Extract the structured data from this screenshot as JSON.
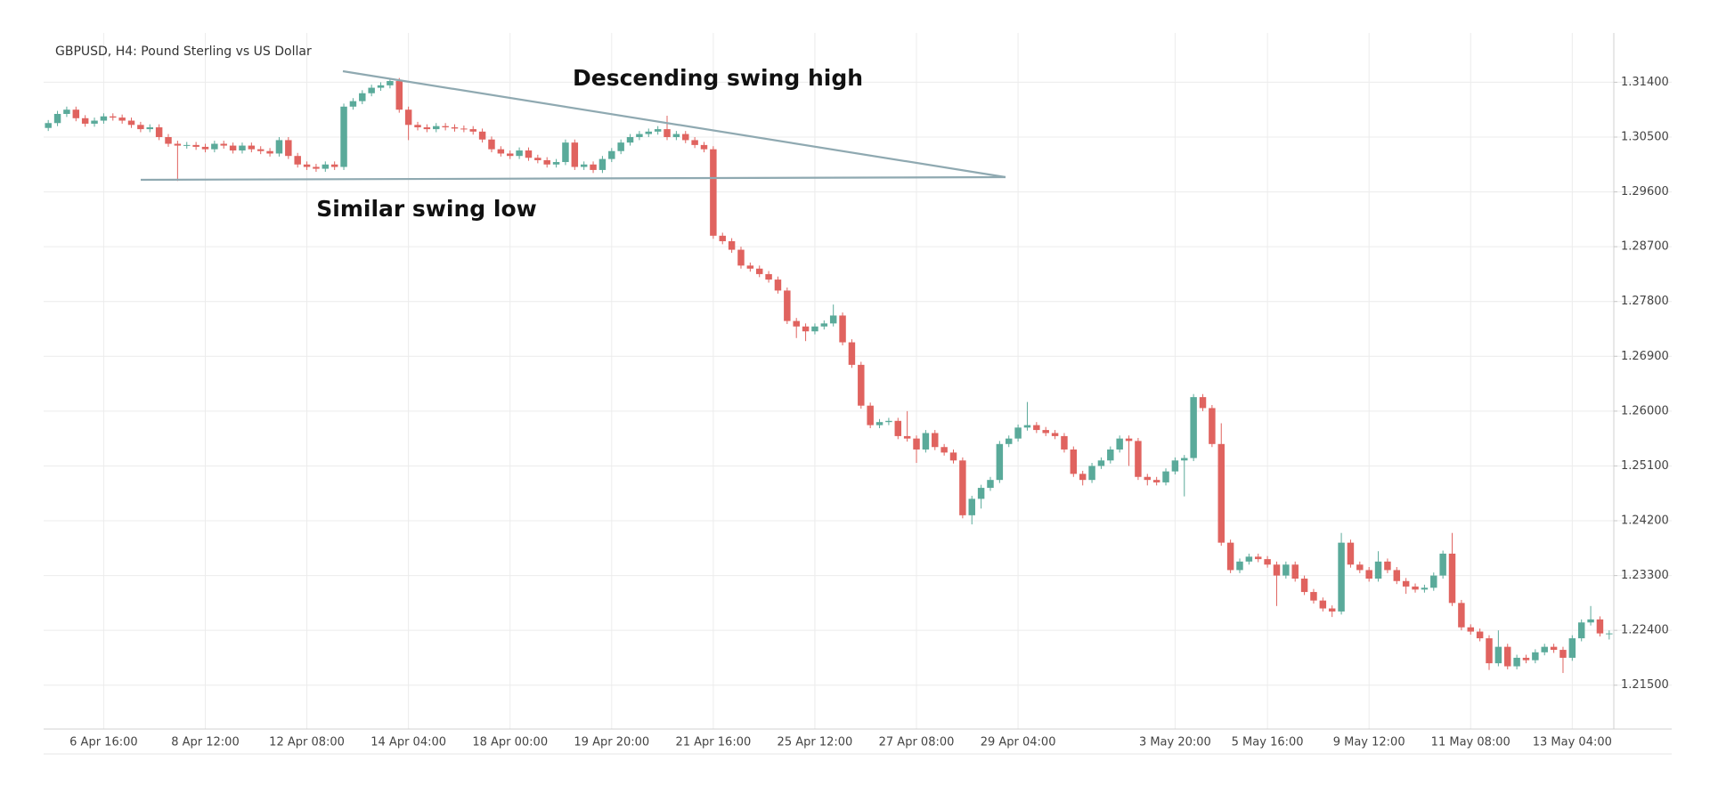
{
  "chart_data": {
    "type": "candlestick",
    "title": "GBPUSD, H4: Pound Sterling vs US Dollar",
    "annotations": [
      "Descending swing high",
      "Similar swing low"
    ],
    "categories": [
      null,
      null,
      null,
      null,
      null,
      null,
      "6 Apr 16:00",
      null,
      null,
      null,
      null,
      null,
      null,
      null,
      null,
      null,
      null,
      "8 Apr 12:00",
      null,
      null,
      null,
      null,
      null,
      null,
      null,
      null,
      null,
      null,
      "12 Apr 08:00",
      null,
      null,
      null,
      null,
      null,
      null,
      null,
      null,
      null,
      null,
      "14 Apr 04:00",
      null,
      null,
      null,
      null,
      null,
      null,
      null,
      null,
      null,
      null,
      "18 Apr 00:00",
      null,
      null,
      null,
      null,
      null,
      null,
      null,
      null,
      null,
      null,
      "19 Apr 20:00",
      null,
      null,
      null,
      null,
      null,
      null,
      null,
      null,
      null,
      null,
      "21 Apr 16:00",
      null,
      null,
      null,
      null,
      null,
      null,
      null,
      null,
      null,
      null,
      "25 Apr 12:00",
      null,
      null,
      null,
      null,
      null,
      null,
      null,
      null,
      null,
      null,
      "27 Apr 08:00",
      null,
      null,
      null,
      null,
      null,
      null,
      null,
      null,
      null,
      null,
      "29 Apr 04:00",
      null,
      null,
      null,
      null,
      null,
      null,
      null,
      null,
      null,
      null,
      null,
      null,
      null,
      null,
      null,
      null,
      "3 May 20:00",
      null,
      null,
      null,
      null,
      null,
      null,
      null,
      null,
      null,
      "5 May 16:00",
      null,
      null,
      null,
      null,
      null,
      null,
      null,
      null,
      null,
      null,
      "9 May 12:00",
      null,
      null,
      null,
      null,
      null,
      null,
      null,
      null,
      null,
      null,
      "11 May 08:00",
      null,
      null,
      null,
      null,
      null,
      null,
      null,
      null,
      null,
      null,
      "13 May 04:00",
      null,
      null,
      null,
      null
    ],
    "open": [
      1.3065,
      1.3073,
      1.3088,
      1.3095,
      1.3081,
      1.3072,
      1.3077,
      1.3084,
      1.3082,
      1.3077,
      1.307,
      1.3063,
      1.3066,
      1.305,
      1.3039,
      1.3036,
      1.3037,
      1.3034,
      1.303,
      1.3039,
      1.3036,
      1.3028,
      1.3036,
      1.303,
      1.3027,
      1.3023,
      1.3045,
      1.3019,
      1.3005,
      1.3001,
      1.2998,
      1.3005,
      1.3001,
      1.31,
      1.3109,
      1.3122,
      1.3131,
      1.3135,
      1.3142,
      1.3095,
      1.307,
      1.3066,
      1.3063,
      1.3068,
      1.3066,
      1.3064,
      1.3063,
      1.3059,
      1.3046,
      1.303,
      1.3023,
      1.3019,
      1.3028,
      1.3016,
      1.3012,
      1.3005,
      1.3009,
      1.3041,
      1.3001,
      1.3005,
      1.2996,
      1.3014,
      1.3027,
      1.3041,
      1.305,
      1.3055,
      1.3059,
      1.3063,
      1.305,
      1.3055,
      1.3045,
      1.3037,
      1.303,
      1.2888,
      1.2879,
      1.2865,
      1.2839,
      1.2834,
      1.2825,
      1.2816,
      1.2798,
      1.2748,
      1.2739,
      1.2731,
      1.2739,
      1.2744,
      1.2757,
      1.2713,
      1.2676,
      1.2609,
      1.2577,
      1.2582,
      1.2584,
      1.2559,
      1.2555,
      1.2537,
      1.2564,
      1.2541,
      1.2532,
      1.2519,
      1.2429,
      1.2456,
      1.2474,
      1.2487,
      1.2546,
      1.2555,
      1.2573,
      1.2577,
      1.2569,
      1.2564,
      1.2559,
      1.2537,
      1.2497,
      1.2487,
      1.251,
      1.2519,
      1.2537,
      1.2555,
      1.2551,
      1.2492,
      1.2487,
      1.2483,
      1.2501,
      1.2519,
      1.2523,
      1.2623,
      1.2605,
      1.2546,
      1.2384,
      1.2339,
      1.2353,
      1.2361,
      1.2357,
      1.2348,
      1.233,
      1.2348,
      1.2325,
      1.2303,
      1.2289,
      1.2276,
      1.2271,
      1.2384,
      1.2348,
      1.2339,
      1.2325,
      1.2353,
      1.2339,
      1.2321,
      1.2312,
      1.2307,
      1.231,
      1.233,
      1.2366,
      1.2285,
      1.2245,
      1.2238,
      1.2227,
      1.2186,
      1.2213,
      1.2181,
      1.2195,
      1.2191,
      1.2204,
      1.2213,
      1.2208,
      1.2195,
      1.2227,
      1.2253,
      1.2258,
      1.2235
    ],
    "high": [
      1.3078,
      1.3093,
      1.31,
      1.31,
      1.3086,
      1.3082,
      1.3089,
      1.3089,
      1.3087,
      1.3082,
      1.3075,
      1.3071,
      1.3071,
      1.3055,
      1.3044,
      1.3042,
      1.3042,
      1.3039,
      1.3044,
      1.3044,
      1.3041,
      1.3041,
      1.3041,
      1.3035,
      1.3032,
      1.305,
      1.305,
      1.3024,
      1.301,
      1.3006,
      1.301,
      1.301,
      1.3105,
      1.3114,
      1.3127,
      1.3136,
      1.314,
      1.3147,
      1.3147,
      1.31,
      1.3075,
      1.3071,
      1.3073,
      1.3073,
      1.3071,
      1.3069,
      1.3068,
      1.3064,
      1.3051,
      1.3035,
      1.3028,
      1.3033,
      1.3033,
      1.3021,
      1.3017,
      1.3014,
      1.3046,
      1.3046,
      1.301,
      1.301,
      1.3019,
      1.3032,
      1.3046,
      1.3055,
      1.306,
      1.3064,
      1.3068,
      1.3085,
      1.306,
      1.306,
      1.305,
      1.3042,
      1.3035,
      1.2893,
      1.2884,
      1.287,
      1.2844,
      1.2839,
      1.283,
      1.2821,
      1.2803,
      1.2753,
      1.2744,
      1.2744,
      1.2749,
      1.2775,
      1.2762,
      1.2718,
      1.2681,
      1.2614,
      1.2587,
      1.2589,
      1.2589,
      1.26,
      1.256,
      1.2569,
      1.2569,
      1.2546,
      1.2537,
      1.2524,
      1.2461,
      1.2479,
      1.2492,
      1.2551,
      1.256,
      1.2578,
      1.2615,
      1.2582,
      1.2574,
      1.2569,
      1.2564,
      1.2542,
      1.2502,
      1.2515,
      1.2524,
      1.2542,
      1.256,
      1.256,
      1.2556,
      1.2497,
      1.2492,
      1.2506,
      1.2524,
      1.2528,
      1.2628,
      1.2628,
      1.261,
      1.258,
      1.2389,
      1.2358,
      1.2366,
      1.2366,
      1.2362,
      1.2353,
      1.2353,
      1.2353,
      1.233,
      1.2308,
      1.2294,
      1.2281,
      1.24,
      1.2389,
      1.2353,
      1.2344,
      1.237,
      1.2358,
      1.2344,
      1.2326,
      1.2317,
      1.2315,
      1.2335,
      1.2371,
      1.24,
      1.229,
      1.225,
      1.2243,
      1.2232,
      1.224,
      1.2218,
      1.22,
      1.22,
      1.2209,
      1.2218,
      1.2218,
      1.2213,
      1.2232,
      1.2258,
      1.228,
      1.2263,
      1.224
    ],
    "low": [
      1.306,
      1.3068,
      1.3083,
      1.3076,
      1.3067,
      1.3067,
      1.3072,
      1.3077,
      1.3072,
      1.3065,
      1.3058,
      1.3058,
      1.3045,
      1.3034,
      1.2978,
      1.3031,
      1.3029,
      1.3025,
      1.3025,
      1.3031,
      1.3023,
      1.3023,
      1.3025,
      1.3022,
      1.3018,
      1.3018,
      1.3014,
      1.3,
      1.2996,
      1.2993,
      1.2993,
      1.2996,
      1.2996,
      1.3095,
      1.3104,
      1.3117,
      1.3126,
      1.313,
      1.309,
      1.3045,
      1.3061,
      1.3058,
      1.3058,
      1.3061,
      1.3059,
      1.3058,
      1.3054,
      1.3041,
      1.3025,
      1.3018,
      1.3014,
      1.3014,
      1.3011,
      1.3007,
      1.3,
      1.3,
      1.3004,
      1.2996,
      1.2996,
      1.2991,
      1.2991,
      1.3009,
      1.3022,
      1.3036,
      1.3045,
      1.305,
      1.3054,
      1.3045,
      1.3045,
      1.304,
      1.3032,
      1.3025,
      1.2883,
      1.2874,
      1.286,
      1.2834,
      1.2829,
      1.282,
      1.2811,
      1.2793,
      1.2743,
      1.272,
      1.2715,
      1.2726,
      1.2734,
      1.2739,
      1.2708,
      1.2671,
      1.2604,
      1.2572,
      1.2572,
      1.2577,
      1.2554,
      1.255,
      1.2515,
      1.2532,
      1.2536,
      1.2527,
      1.2514,
      1.2424,
      1.2414,
      1.244,
      1.2469,
      1.2482,
      1.2541,
      1.255,
      1.2568,
      1.2564,
      1.2559,
      1.2554,
      1.2532,
      1.2492,
      1.2478,
      1.2482,
      1.2505,
      1.2514,
      1.2532,
      1.251,
      1.2487,
      1.2478,
      1.2478,
      1.2478,
      1.2496,
      1.246,
      1.2518,
      1.26,
      1.2541,
      1.2379,
      1.2334,
      1.2334,
      1.2348,
      1.2352,
      1.2343,
      1.228,
      1.2325,
      1.232,
      1.2298,
      1.2284,
      1.2271,
      1.2262,
      1.2266,
      1.2343,
      1.2334,
      1.232,
      1.232,
      1.2334,
      1.2316,
      1.23,
      1.2302,
      1.2302,
      1.2305,
      1.2325,
      1.228,
      1.224,
      1.2233,
      1.2222,
      1.2175,
      1.2181,
      1.2176,
      1.2176,
      1.2186,
      1.2186,
      1.2199,
      1.2203,
      1.217,
      1.219,
      1.2222,
      1.2248,
      1.223,
      1.2225
    ],
    "close": [
      1.3073,
      1.3088,
      1.3095,
      1.3081,
      1.3072,
      1.3077,
      1.3084,
      1.3082,
      1.3077,
      1.307,
      1.3063,
      1.3066,
      1.305,
      1.3039,
      1.3036,
      1.3037,
      1.3034,
      1.303,
      1.3039,
      1.3036,
      1.3028,
      1.3036,
      1.303,
      1.3027,
      1.3023,
      1.3045,
      1.3019,
      1.3005,
      1.3001,
      1.2998,
      1.3005,
      1.3001,
      1.31,
      1.3109,
      1.3122,
      1.3131,
      1.3135,
      1.3142,
      1.3095,
      1.307,
      1.3066,
      1.3063,
      1.3068,
      1.3066,
      1.3064,
      1.3063,
      1.3059,
      1.3046,
      1.303,
      1.3023,
      1.3019,
      1.3028,
      1.3016,
      1.3012,
      1.3005,
      1.3009,
      1.3041,
      1.3001,
      1.3005,
      1.2996,
      1.3014,
      1.3027,
      1.3041,
      1.305,
      1.3055,
      1.3059,
      1.3063,
      1.305,
      1.3055,
      1.3045,
      1.3037,
      1.303,
      1.2888,
      1.2879,
      1.2865,
      1.2839,
      1.2834,
      1.2825,
      1.2816,
      1.2798,
      1.2748,
      1.2739,
      1.2731,
      1.2739,
      1.2744,
      1.2757,
      1.2713,
      1.2676,
      1.2609,
      1.2577,
      1.2582,
      1.2584,
      1.2559,
      1.2555,
      1.2537,
      1.2564,
      1.2541,
      1.2532,
      1.2519,
      1.2429,
      1.2456,
      1.2474,
      1.2487,
      1.2546,
      1.2555,
      1.2573,
      1.2577,
      1.2569,
      1.2564,
      1.2559,
      1.2537,
      1.2497,
      1.2487,
      1.251,
      1.2519,
      1.2537,
      1.2555,
      1.2551,
      1.2492,
      1.2487,
      1.2483,
      1.2501,
      1.2519,
      1.2523,
      1.2623,
      1.2605,
      1.2546,
      1.2384,
      1.2339,
      1.2353,
      1.2361,
      1.2357,
      1.2348,
      1.233,
      1.2348,
      1.2325,
      1.2303,
      1.2289,
      1.2276,
      1.2271,
      1.2384,
      1.2348,
      1.2339,
      1.2325,
      1.2353,
      1.2339,
      1.2321,
      1.2312,
      1.2307,
      1.231,
      1.233,
      1.2366,
      1.2285,
      1.2245,
      1.2238,
      1.2227,
      1.2186,
      1.2213,
      1.2181,
      1.2195,
      1.2191,
      1.2204,
      1.2213,
      1.2208,
      1.2195,
      1.2227,
      1.2253,
      1.2258,
      1.2235,
      1.2235
    ],
    "up_color": "#5aaa9a",
    "down_color": "#e0635f",
    "ylim": [
      1.2078,
      1.3221
    ],
    "yticks": [
      {
        "value": 1.314,
        "label": "1.31400"
      },
      {
        "value": 1.305,
        "label": "1.30500"
      },
      {
        "value": 1.296,
        "label": "1.29600"
      },
      {
        "value": 1.287,
        "label": "1.28700"
      },
      {
        "value": 1.278,
        "label": "1.27800"
      },
      {
        "value": 1.269,
        "label": "1.26900"
      },
      {
        "value": 1.26,
        "label": "1.26000"
      },
      {
        "value": 1.251,
        "label": "1.25100"
      },
      {
        "value": 1.242,
        "label": "1.24200"
      },
      {
        "value": 1.233,
        "label": "1.23300"
      },
      {
        "value": 1.224,
        "label": "1.22400"
      },
      {
        "value": 1.215,
        "label": "1.21500"
      }
    ],
    "grid": true
  }
}
